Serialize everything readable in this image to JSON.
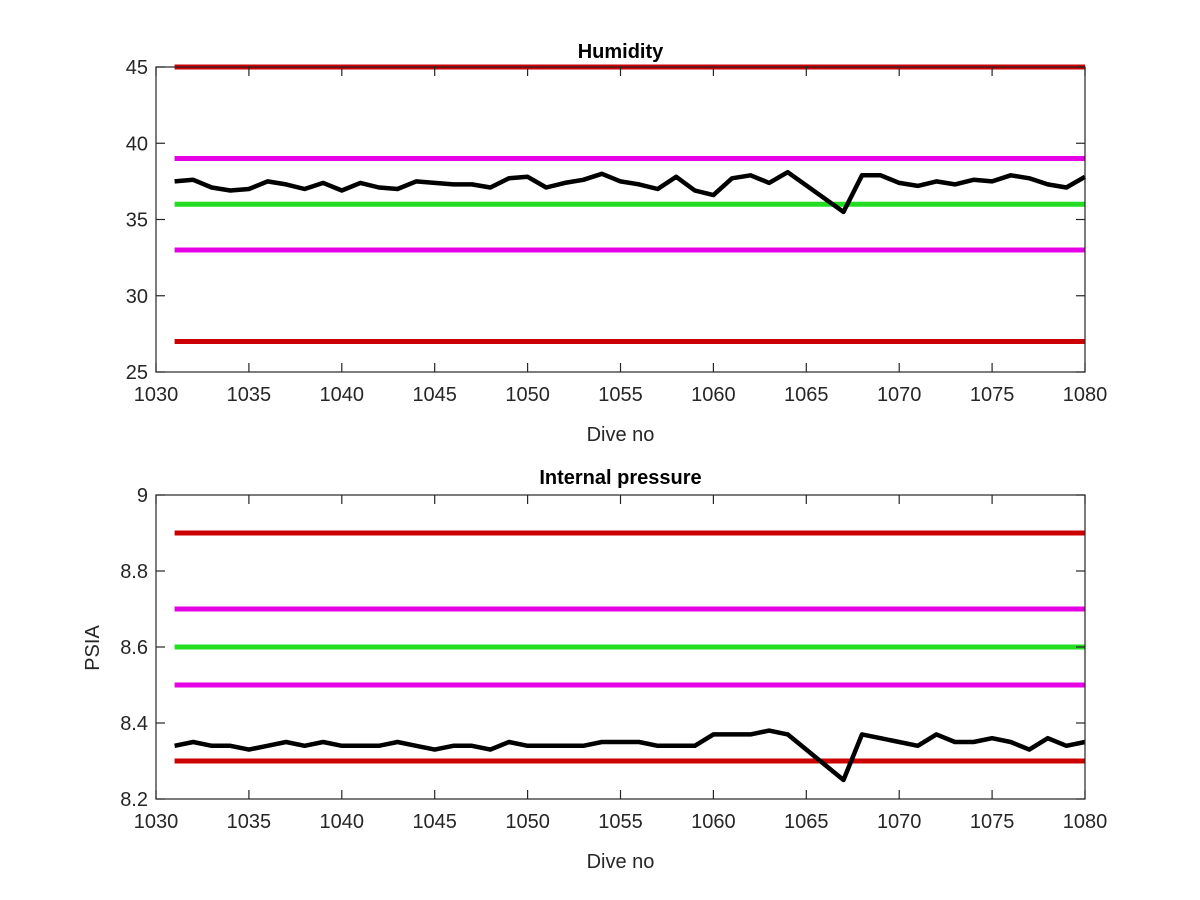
{
  "colors": {
    "background": "#ffffff",
    "axis": "#262626",
    "data_line": "#000000",
    "red_limit": "#cc0000",
    "magenta_limit": "#e600e6",
    "green_nominal": "#22dd22"
  },
  "chart_data": [
    {
      "type": "line",
      "title": "Humidity",
      "xlabel": "Dive no",
      "ylabel": "",
      "xlim": [
        1030,
        1080
      ],
      "ylim": [
        25,
        45
      ],
      "xticks": [
        1030,
        1035,
        1040,
        1045,
        1050,
        1055,
        1060,
        1065,
        1070,
        1075,
        1080
      ],
      "yticks": [
        25,
        30,
        35,
        40,
        45
      ],
      "grid": false,
      "box": true,
      "reference_lines": [
        {
          "y": 45,
          "color": "red"
        },
        {
          "y": 39,
          "color": "magenta"
        },
        {
          "y": 36,
          "color": "green"
        },
        {
          "y": 33,
          "color": "magenta"
        },
        {
          "y": 27,
          "color": "red"
        }
      ],
      "series": [
        {
          "x": [
            1031,
            1032,
            1033,
            1034,
            1035,
            1036,
            1037,
            1038,
            1039,
            1040,
            1041,
            1042,
            1043,
            1044,
            1045,
            1046,
            1047,
            1048,
            1049,
            1050,
            1051,
            1052,
            1053,
            1054,
            1055,
            1056,
            1057,
            1058,
            1059,
            1060,
            1061,
            1062,
            1063,
            1064,
            1067,
            1068,
            1069,
            1070,
            1071,
            1072,
            1073,
            1074,
            1075,
            1076,
            1077,
            1078,
            1079,
            1080
          ],
          "y": [
            37.5,
            37.6,
            37.1,
            36.9,
            37.0,
            37.5,
            37.3,
            37.0,
            37.4,
            36.9,
            37.4,
            37.1,
            37.0,
            37.5,
            37.4,
            37.3,
            37.3,
            37.1,
            37.7,
            37.8,
            37.1,
            37.4,
            37.6,
            38.0,
            37.5,
            37.3,
            37.0,
            37.8,
            36.9,
            36.6,
            37.7,
            37.9,
            37.4,
            38.1,
            35.5,
            37.9,
            37.9,
            37.4,
            37.2,
            37.5,
            37.3,
            37.6,
            37.5,
            37.9,
            37.7,
            37.3,
            37.1,
            37.8
          ]
        }
      ]
    },
    {
      "type": "line",
      "title": "Internal pressure",
      "xlabel": "Dive no",
      "ylabel": "PSIA",
      "xlim": [
        1030,
        1080
      ],
      "ylim": [
        8.2,
        9.0
      ],
      "xticks": [
        1030,
        1035,
        1040,
        1045,
        1050,
        1055,
        1060,
        1065,
        1070,
        1075,
        1080
      ],
      "yticks": [
        8.2,
        8.4,
        8.6,
        8.8,
        9
      ],
      "grid": false,
      "box": true,
      "reference_lines": [
        {
          "y": 8.9,
          "color": "red"
        },
        {
          "y": 8.7,
          "color": "magenta"
        },
        {
          "y": 8.6,
          "color": "green"
        },
        {
          "y": 8.5,
          "color": "magenta"
        },
        {
          "y": 8.3,
          "color": "red"
        }
      ],
      "series": [
        {
          "x": [
            1031,
            1032,
            1033,
            1034,
            1035,
            1036,
            1037,
            1038,
            1039,
            1040,
            1041,
            1042,
            1043,
            1044,
            1045,
            1046,
            1047,
            1048,
            1049,
            1050,
            1051,
            1052,
            1053,
            1054,
            1055,
            1056,
            1057,
            1058,
            1059,
            1060,
            1061,
            1062,
            1063,
            1064,
            1067,
            1068,
            1069,
            1070,
            1071,
            1072,
            1073,
            1074,
            1075,
            1076,
            1077,
            1078,
            1079,
            1080
          ],
          "y": [
            8.34,
            8.35,
            8.34,
            8.34,
            8.33,
            8.34,
            8.35,
            8.34,
            8.35,
            8.34,
            8.34,
            8.34,
            8.35,
            8.34,
            8.33,
            8.34,
            8.34,
            8.33,
            8.35,
            8.34,
            8.34,
            8.34,
            8.34,
            8.35,
            8.35,
            8.35,
            8.34,
            8.34,
            8.34,
            8.37,
            8.37,
            8.37,
            8.38,
            8.37,
            8.25,
            8.37,
            8.36,
            8.35,
            8.34,
            8.37,
            8.35,
            8.35,
            8.36,
            8.35,
            8.33,
            8.36,
            8.34,
            8.35
          ]
        }
      ]
    }
  ]
}
